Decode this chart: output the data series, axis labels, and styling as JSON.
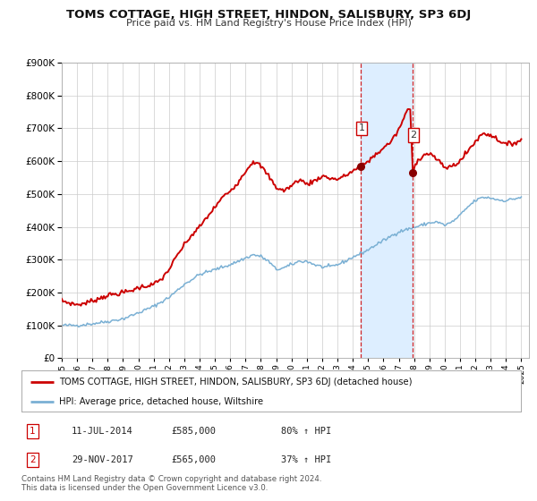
{
  "title": "TOMS COTTAGE, HIGH STREET, HINDON, SALISBURY, SP3 6DJ",
  "subtitle": "Price paid vs. HM Land Registry's House Price Index (HPI)",
  "legend_label_red": "TOMS COTTAGE, HIGH STREET, HINDON, SALISBURY, SP3 6DJ (detached house)",
  "legend_label_blue": "HPI: Average price, detached house, Wiltshire",
  "note": "Contains HM Land Registry data © Crown copyright and database right 2024.\nThis data is licensed under the Open Government Licence v3.0.",
  "transaction1_date": "11-JUL-2014",
  "transaction1_price": "£585,000",
  "transaction1_hpi": "80% ↑ HPI",
  "transaction2_date": "29-NOV-2017",
  "transaction2_price": "£565,000",
  "transaction2_hpi": "37% ↑ HPI",
  "t1_date_num": 2014.53,
  "t2_date_num": 2017.91,
  "t1_price": 585000,
  "t2_price": 565000,
  "red_color": "#cc0000",
  "blue_color": "#7ab0d4",
  "shading_color": "#ddeeff",
  "vline_color": "#cc0000",
  "grid_color": "#cccccc",
  "background_color": "#ffffff",
  "ylim_min": 0,
  "ylim_max": 900000,
  "xlim_min": 1995.0,
  "xlim_max": 2025.5,
  "hpi_anchors": {
    "1995.0": 100000,
    "1996.0": 100000,
    "1997.0": 105000,
    "1998.0": 112000,
    "1999.0": 120000,
    "2000.0": 138000,
    "2001.0": 158000,
    "2002.0": 185000,
    "2002.5": 205000,
    "2003.0": 225000,
    "2004.0": 255000,
    "2005.0": 270000,
    "2006.0": 285000,
    "2007.0": 305000,
    "2007.5": 315000,
    "2008.0": 310000,
    "2008.5": 295000,
    "2009.0": 270000,
    "2009.5": 275000,
    "2010.0": 285000,
    "2010.5": 295000,
    "2011.0": 295000,
    "2011.5": 285000,
    "2012.0": 278000,
    "2012.5": 278000,
    "2013.0": 285000,
    "2013.5": 295000,
    "2014.0": 308000,
    "2014.5": 318000,
    "2015.0": 330000,
    "2015.5": 345000,
    "2016.0": 358000,
    "2016.5": 372000,
    "2017.0": 385000,
    "2017.5": 392000,
    "2018.0": 398000,
    "2018.5": 405000,
    "2019.0": 412000,
    "2019.5": 415000,
    "2020.0": 405000,
    "2020.5": 415000,
    "2021.0": 435000,
    "2021.5": 460000,
    "2022.0": 480000,
    "2022.5": 490000,
    "2023.0": 488000,
    "2023.5": 482000,
    "2024.0": 480000,
    "2024.5": 485000,
    "2025.0": 490000
  },
  "prop_anchors": {
    "1995.0": 175000,
    "1995.5": 168000,
    "1996.0": 163000,
    "1996.5": 167000,
    "1997.0": 175000,
    "1997.5": 183000,
    "1998.0": 192000,
    "1998.5": 195000,
    "1999.0": 200000,
    "1999.5": 205000,
    "2000.0": 215000,
    "2000.5": 220000,
    "2001.0": 225000,
    "2001.5": 240000,
    "2002.0": 270000,
    "2002.5": 310000,
    "2003.0": 345000,
    "2003.5": 375000,
    "2004.0": 400000,
    "2004.5": 430000,
    "2005.0": 460000,
    "2005.5": 490000,
    "2006.0": 510000,
    "2006.5": 535000,
    "2007.0": 570000,
    "2007.5": 600000,
    "2008.0": 585000,
    "2008.5": 555000,
    "2009.0": 520000,
    "2009.5": 510000,
    "2010.0": 525000,
    "2010.5": 545000,
    "2011.0": 530000,
    "2011.5": 540000,
    "2012.0": 555000,
    "2012.5": 548000,
    "2013.0": 545000,
    "2013.5": 555000,
    "2014.0": 570000,
    "2014.53": 585000,
    "2015.0": 600000,
    "2015.5": 620000,
    "2016.0": 640000,
    "2016.5": 660000,
    "2017.0": 695000,
    "2017.5": 750000,
    "2017.75": 760000,
    "2017.91": 565000,
    "2018.1": 595000,
    "2018.5": 615000,
    "2019.0": 625000,
    "2019.5": 605000,
    "2020.0": 580000,
    "2020.5": 585000,
    "2021.0": 600000,
    "2021.5": 630000,
    "2022.0": 660000,
    "2022.5": 685000,
    "2023.0": 680000,
    "2023.5": 665000,
    "2024.0": 650000,
    "2024.5": 655000,
    "2025.0": 665000
  }
}
